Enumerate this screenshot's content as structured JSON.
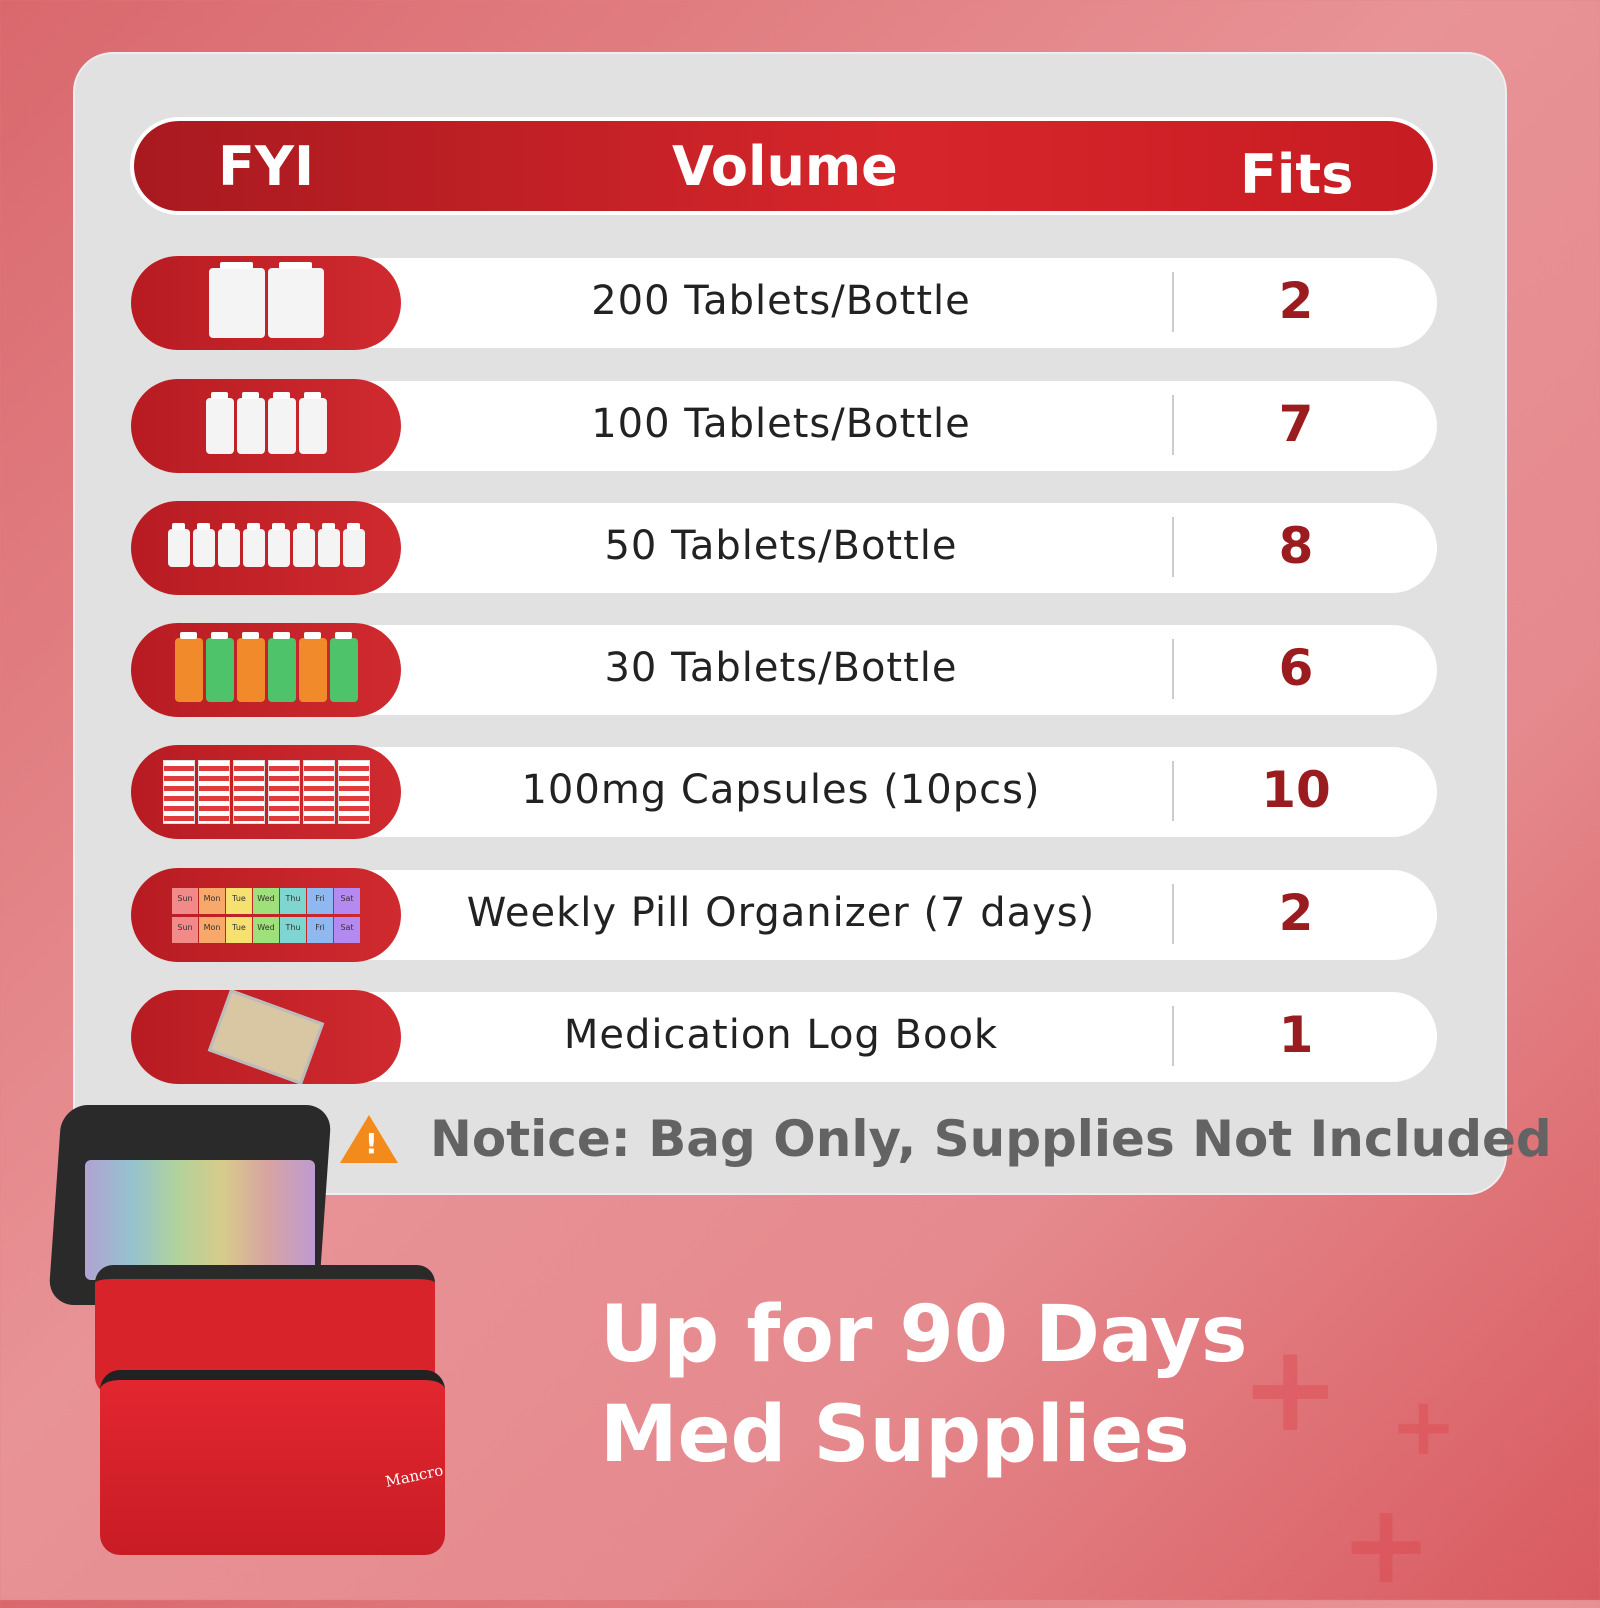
{
  "header": {
    "fyi": "FYI",
    "volume": "Volume",
    "fits": "Fits"
  },
  "rows": [
    {
      "icon": "large-bottles-icon",
      "volume": "200 Tablets/Bottle",
      "fits": "2"
    },
    {
      "icon": "medium-bottles-icon",
      "volume": "100 Tablets/Bottle",
      "fits": "7"
    },
    {
      "icon": "small-bottles-icon",
      "volume": "50 Tablets/Bottle",
      "fits": "8"
    },
    {
      "icon": "prescription-bottles-icon",
      "volume": "30 Tablets/Bottle",
      "fits": "6"
    },
    {
      "icon": "capsule-blister-icon",
      "volume": "100mg Capsules (10pcs)",
      "fits": "10"
    },
    {
      "icon": "pill-organizer-icon",
      "volume": "Weekly Pill Organizer (7 days)",
      "fits": "2"
    },
    {
      "icon": "clipboard-stethoscope-icon",
      "volume": "Medication Log Book",
      "fits": "1"
    }
  ],
  "organizer_days": [
    "Sun",
    "Mon",
    "Tue",
    "Wed",
    "Thu",
    "Fri",
    "Sat"
  ],
  "notice": "Notice: Bag Only, Supplies Not Included",
  "headline": {
    "line1": "Up for 90 Days",
    "line2": "Med Supplies"
  },
  "brand": "Mancro",
  "colors": {
    "accent": "#c8202a",
    "fits_text": "#9b1c1f",
    "warning": "#f28a1c",
    "panel": "#e1e1e1"
  }
}
